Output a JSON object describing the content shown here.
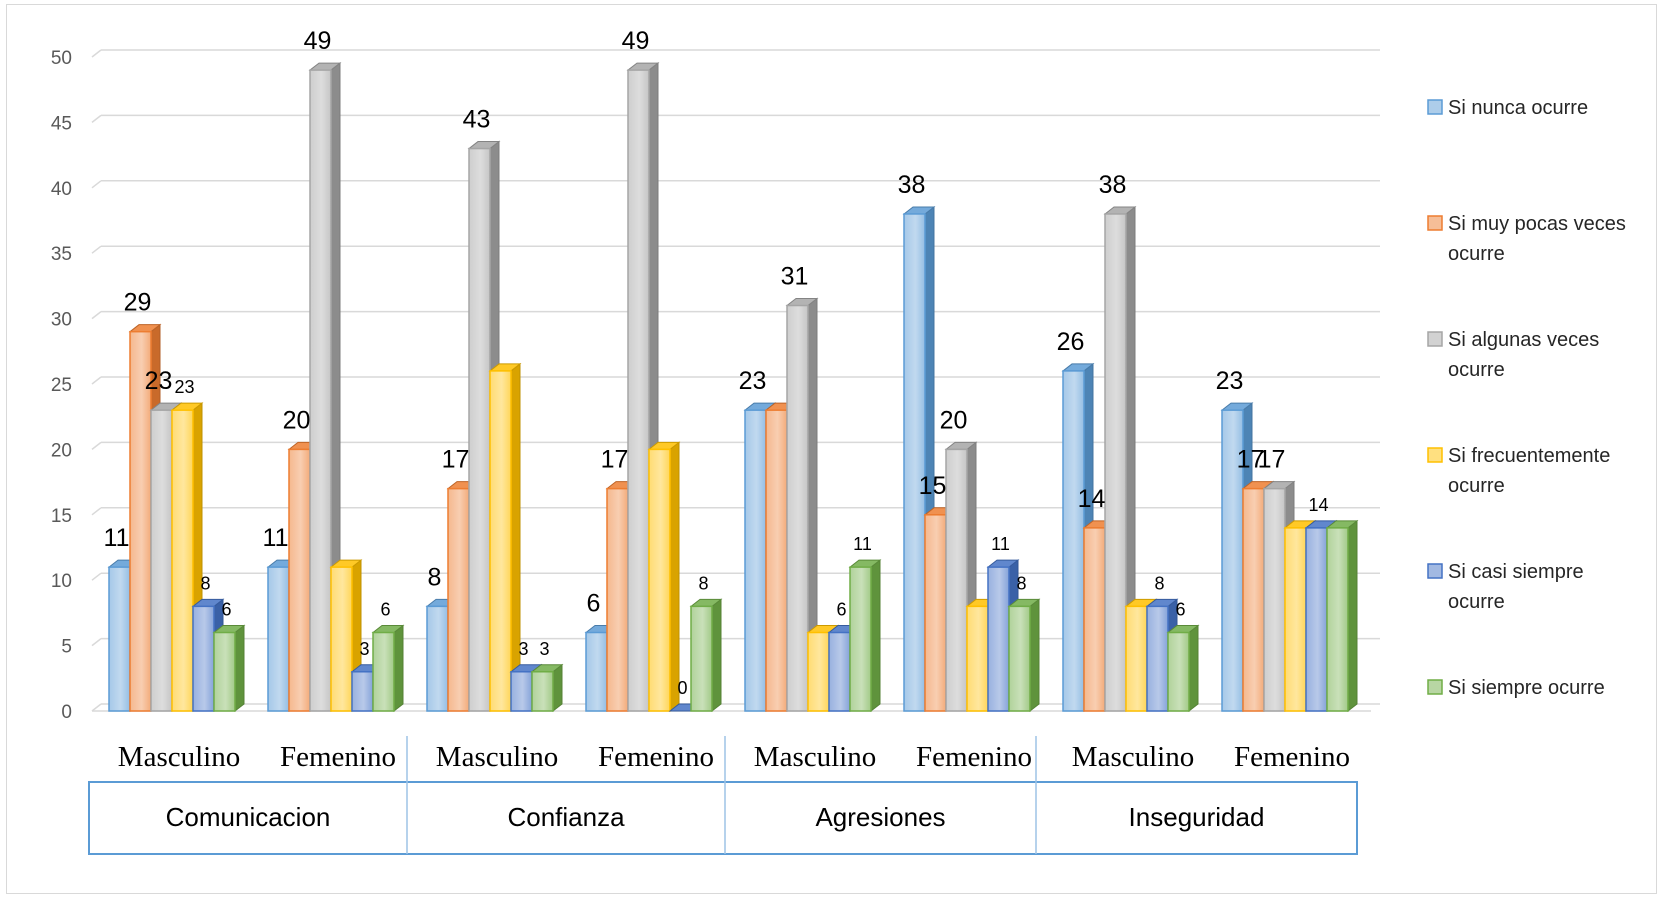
{
  "chart_data": {
    "type": "bar",
    "style": "3d-clustered-column",
    "groups": [
      "Comunicacion",
      "Confianza",
      "Agresiones",
      "Inseguridad"
    ],
    "categories": [
      "Masculino",
      "Femenino",
      "Masculino",
      "Femenino",
      "Masculino",
      "Femenino",
      "Masculino",
      "Femenino"
    ],
    "series": [
      {
        "name": "Si nunca ocurre",
        "color": "#5b9bd5",
        "values": [
          11,
          11,
          8,
          6,
          23,
          38,
          26,
          23
        ]
      },
      {
        "name": "Si muy pocas veces ocurre",
        "color": "#ed7d31",
        "values": [
          29,
          20,
          17,
          17,
          23,
          15,
          14,
          17
        ]
      },
      {
        "name": "Si algunas veces ocurre",
        "color": "#a5a5a5",
        "values": [
          23,
          49,
          43,
          49,
          31,
          20,
          38,
          17
        ]
      },
      {
        "name": "Si frecuentemente ocurre",
        "color": "#ffc000",
        "values": [
          23,
          11,
          26,
          20,
          6,
          8,
          8,
          14
        ]
      },
      {
        "name": "Si casi siempre ocurre",
        "color": "#4472c4",
        "values": [
          8,
          3,
          3,
          0,
          6,
          11,
          8,
          14
        ]
      },
      {
        "name": "Si siempre ocurre",
        "color": "#70ad47",
        "values": [
          6,
          6,
          3,
          8,
          11,
          8,
          6,
          14
        ]
      }
    ],
    "data_labels": [
      [
        "11",
        "29",
        "23",
        "23",
        "8",
        "6"
      ],
      [
        "11",
        "20",
        "49",
        "",
        "3",
        "6"
      ],
      [
        "8",
        "17",
        "43",
        "",
        "3",
        "3"
      ],
      [
        "6",
        "17",
        "49",
        "",
        "0",
        "8"
      ],
      [
        "23",
        "",
        "31",
        "",
        "6",
        "11"
      ],
      [
        "38",
        "15",
        "20",
        "",
        "11",
        "8"
      ],
      [
        "26",
        "14",
        "38",
        "",
        "8",
        "6"
      ],
      [
        "23",
        "17",
        "17",
        "",
        "14",
        ""
      ]
    ],
    "y_ticks": [
      "0",
      "5",
      "10",
      "15",
      "20",
      "25",
      "30",
      "35",
      "40",
      "45",
      "50"
    ],
    "ylim": [
      0,
      50
    ],
    "grid": true,
    "legend_position": "right"
  }
}
